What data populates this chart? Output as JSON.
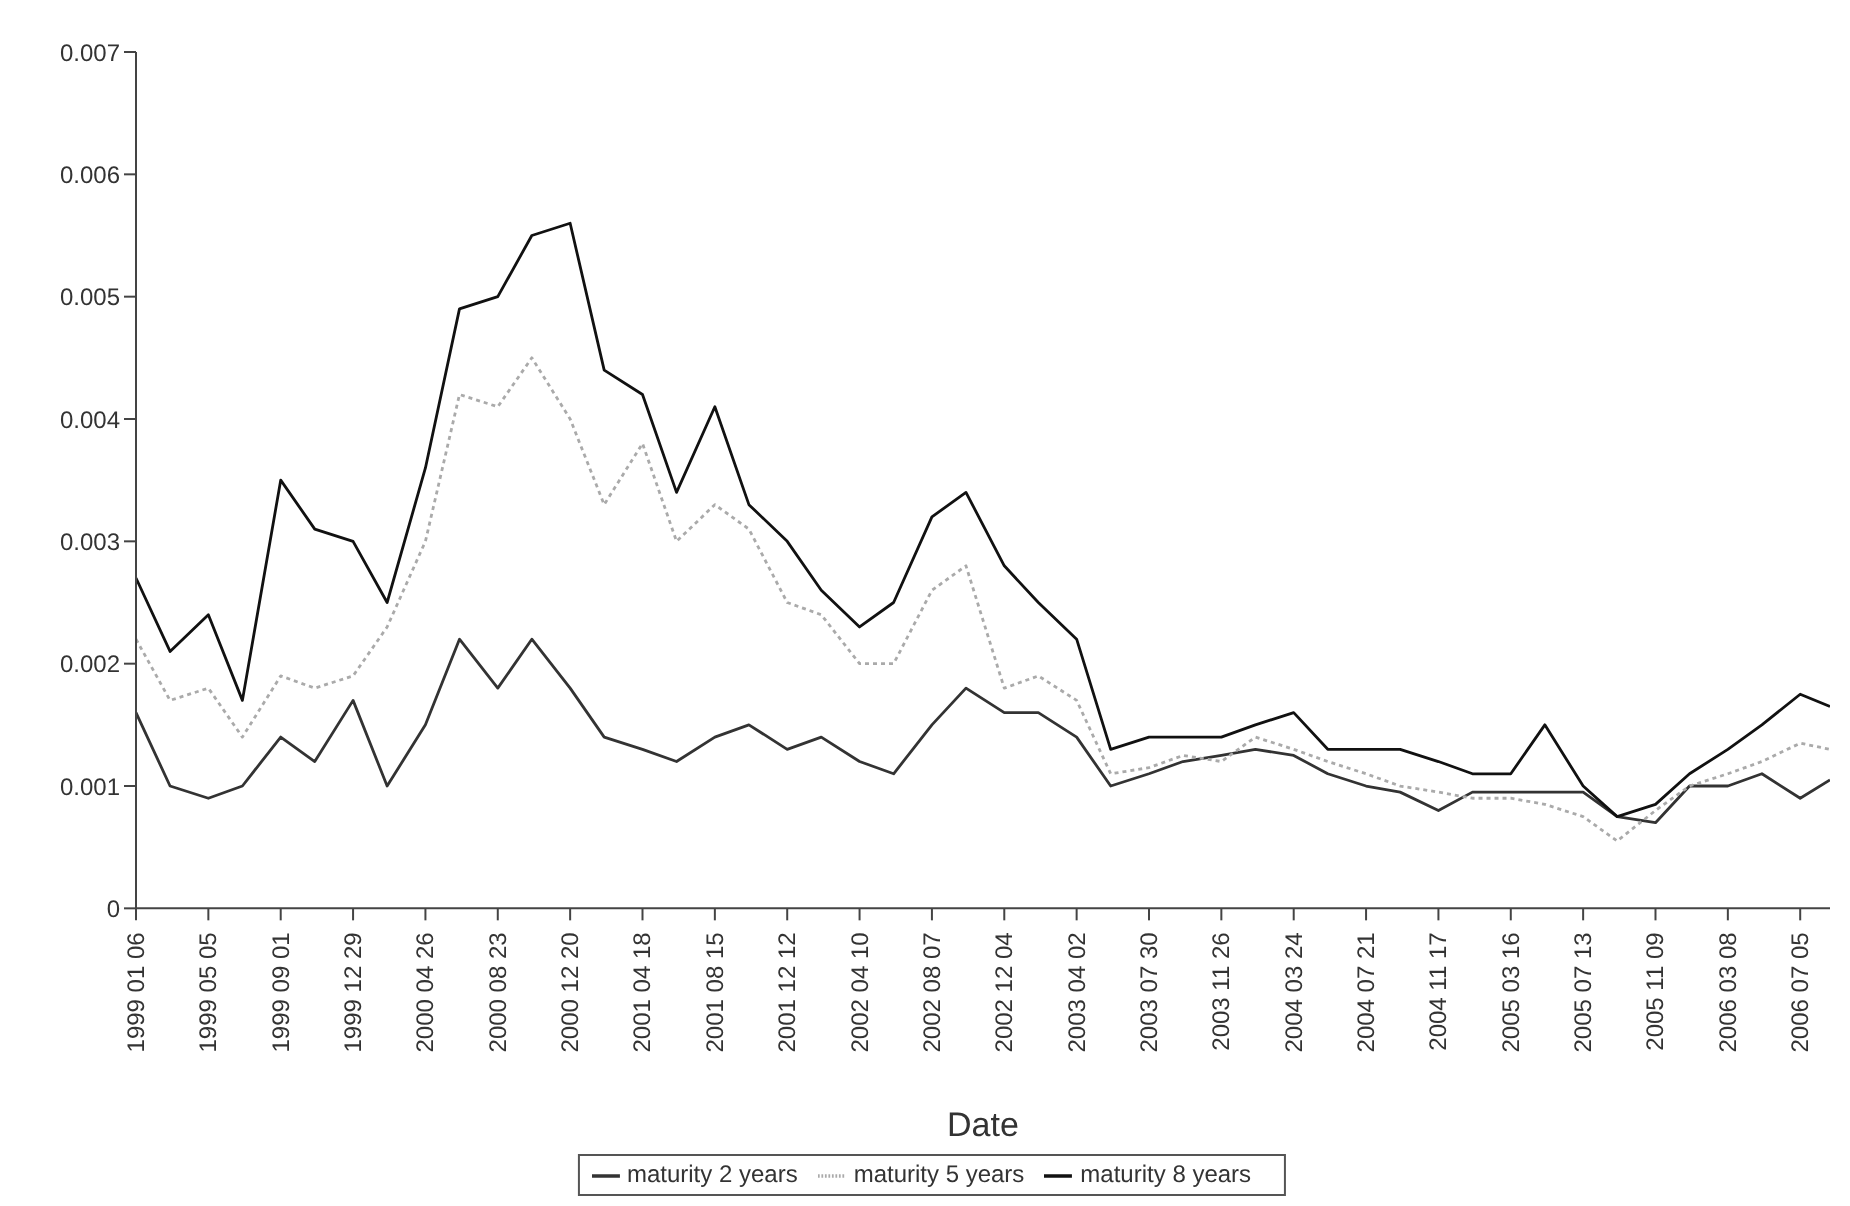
{
  "chart_data": {
    "type": "line",
    "xlabel": "Date",
    "legend": "bottom",
    "grid": false,
    "marker": "none",
    "x": [
      "1999-01-06",
      "1999-03-03",
      "1999-05-05",
      "1999-06-30",
      "1999-09-01",
      "1999-10-27",
      "1999-12-29",
      "2000-02-23",
      "2000-04-26",
      "2000-06-21",
      "2000-08-23",
      "2000-10-18",
      "2000-12-20",
      "2001-02-14",
      "2001-04-18",
      "2001-06-13",
      "2001-08-15",
      "2001-10-10",
      "2001-12-12",
      "2002-02-06",
      "2002-04-10",
      "2002-06-05",
      "2002-08-07",
      "2002-10-02",
      "2002-12-04",
      "2003-01-29",
      "2003-04-02",
      "2003-05-28",
      "2003-07-30",
      "2003-09-24",
      "2003-11-26",
      "2004-01-21",
      "2004-03-24",
      "2004-05-19",
      "2004-07-21",
      "2004-09-15",
      "2004-11-17",
      "2005-01-12",
      "2005-03-16",
      "2005-05-11",
      "2005-07-13",
      "2005-09-07",
      "2005-11-09",
      "2006-01-04",
      "2006-03-08",
      "2006-05-03",
      "2006-07-05",
      "2006-08-23"
    ],
    "xlim": [
      "1999-01-06",
      "2006-08-23"
    ],
    "xticks": [
      {
        "value": "1999-01-06",
        "label": "1999 01 06"
      },
      {
        "value": "1999-05-05",
        "label": "1999 05 05"
      },
      {
        "value": "1999-09-01",
        "label": "1999 09 01"
      },
      {
        "value": "1999-12-29",
        "label": "1999 12 29"
      },
      {
        "value": "2000-04-26",
        "label": "2000 04 26"
      },
      {
        "value": "2000-08-23",
        "label": "2000 08 23"
      },
      {
        "value": "2000-12-20",
        "label": "2000 12 20"
      },
      {
        "value": "2001-04-18",
        "label": "2001 04 18"
      },
      {
        "value": "2001-08-15",
        "label": "2001 08 15"
      },
      {
        "value": "2001-12-12",
        "label": "2001 12 12"
      },
      {
        "value": "2002-04-10",
        "label": "2002 04 10"
      },
      {
        "value": "2002-08-07",
        "label": "2002 08 07"
      },
      {
        "value": "2002-12-04",
        "label": "2002 12 04"
      },
      {
        "value": "2003-04-02",
        "label": "2003 04 02"
      },
      {
        "value": "2003-07-30",
        "label": "2003 07 30"
      },
      {
        "value": "2003-11-26",
        "label": "2003 11 26"
      },
      {
        "value": "2004-03-24",
        "label": "2004 03 24"
      },
      {
        "value": "2004-07-21",
        "label": "2004 07 21"
      },
      {
        "value": "2004-11-17",
        "label": "2004 11 17"
      },
      {
        "value": "2005-03-16",
        "label": "2005 03 16"
      },
      {
        "value": "2005-07-13",
        "label": "2005 07 13"
      },
      {
        "value": "2005-11-09",
        "label": "2005 11 09"
      },
      {
        "value": "2006-03-08",
        "label": "2006 03 08"
      },
      {
        "value": "2006-07-05",
        "label": "2006 07 05"
      }
    ],
    "ylim": [
      0,
      0.007
    ],
    "yticks": [
      0,
      0.001,
      0.002,
      0.003,
      0.004,
      0.005,
      0.006,
      0.007
    ],
    "series": [
      {
        "name": "maturity 2 years",
        "color": "#333333",
        "line_style": "solid",
        "values": [
          0.0016,
          0.001,
          0.0009,
          0.001,
          0.0014,
          0.0012,
          0.0017,
          0.001,
          0.0015,
          0.0022,
          0.0018,
          0.0022,
          0.0018,
          0.0014,
          0.0013,
          0.0012,
          0.0014,
          0.0015,
          0.0013,
          0.0014,
          0.0012,
          0.0011,
          0.0015,
          0.0018,
          0.0016,
          0.0016,
          0.0014,
          0.001,
          0.0011,
          0.0012,
          0.00125,
          0.0013,
          0.00125,
          0.0011,
          0.001,
          0.00095,
          0.0008,
          0.00095,
          0.00095,
          0.00095,
          0.00095,
          0.00075,
          0.0007,
          0.001,
          0.001,
          0.0011,
          0.0009,
          0.00105
        ]
      },
      {
        "name": "maturity 5 years",
        "color": "#aaaaaa",
        "line_style": "dotted",
        "values": [
          0.0022,
          0.0017,
          0.0018,
          0.0014,
          0.0019,
          0.0018,
          0.0019,
          0.0023,
          0.003,
          0.0042,
          0.0041,
          0.0045,
          0.004,
          0.0033,
          0.0038,
          0.003,
          0.0033,
          0.0031,
          0.0025,
          0.0024,
          0.002,
          0.002,
          0.0026,
          0.0028,
          0.0018,
          0.0019,
          0.0017,
          0.0011,
          0.00115,
          0.00125,
          0.0012,
          0.0014,
          0.0013,
          0.0012,
          0.0011,
          0.001,
          0.00095,
          0.0009,
          0.0009,
          0.00085,
          0.00075,
          0.00055,
          0.0008,
          0.001,
          0.0011,
          0.0012,
          0.00135,
          0.0013
        ]
      },
      {
        "name": "maturity 8 years",
        "color": "#111111",
        "line_style": "solid",
        "values": [
          0.0027,
          0.0021,
          0.0024,
          0.0017,
          0.0035,
          0.0031,
          0.003,
          0.0025,
          0.0036,
          0.0049,
          0.005,
          0.0055,
          0.0056,
          0.0044,
          0.0042,
          0.0034,
          0.0041,
          0.0033,
          0.003,
          0.0026,
          0.0023,
          0.0025,
          0.0032,
          0.0034,
          0.0028,
          0.0025,
          0.0022,
          0.0013,
          0.0014,
          0.0014,
          0.0014,
          0.0015,
          0.0016,
          0.0013,
          0.0013,
          0.0013,
          0.0012,
          0.0011,
          0.0011,
          0.0015,
          0.001,
          0.00075,
          0.00085,
          0.0011,
          0.0013,
          0.0015,
          0.00175,
          0.00165
        ]
      }
    ]
  }
}
